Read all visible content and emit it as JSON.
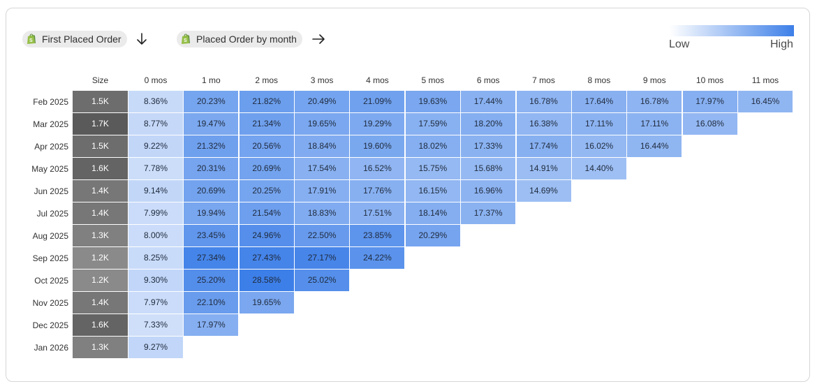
{
  "header": {
    "row_dimension_label": "First Placed Order",
    "row_dimension_icon": "shopify-logo-icon",
    "row_arrow_icon": "arrow-down-icon",
    "column_dimension_label": "Placed Order by month",
    "column_dimension_icon": "shopify-logo-icon",
    "column_arrow_icon": "arrow-right-icon"
  },
  "legend": {
    "low_label": "Low",
    "high_label": "High",
    "low_color": "#ffffff",
    "high_color": "#3d7fe8"
  },
  "colors": {
    "size_dark": "#5a5a5a",
    "size_light": "#8a8a8a"
  },
  "chart_data": {
    "type": "heatmap",
    "size_header": "Size",
    "columns": [
      "0 mos",
      "1 mo",
      "2 mos",
      "3 mos",
      "4 mos",
      "5 mos",
      "6 mos",
      "7 mos",
      "8 mos",
      "9 mos",
      "10 mos",
      "11 mos"
    ],
    "rows": [
      {
        "label": "Feb 2025",
        "size": "1.5K",
        "size_value": 1500,
        "values": [
          8.36,
          20.23,
          21.82,
          20.49,
          21.09,
          19.63,
          17.44,
          16.78,
          17.64,
          16.78,
          17.97,
          16.45
        ]
      },
      {
        "label": "Mar 2025",
        "size": "1.7K",
        "size_value": 1700,
        "values": [
          8.77,
          19.47,
          21.34,
          19.65,
          19.29,
          17.59,
          18.2,
          16.38,
          17.11,
          17.11,
          16.08
        ]
      },
      {
        "label": "Apr 2025",
        "size": "1.5K",
        "size_value": 1500,
        "values": [
          9.22,
          21.32,
          20.56,
          18.84,
          19.6,
          18.02,
          17.33,
          17.74,
          16.02,
          16.44
        ]
      },
      {
        "label": "May 2025",
        "size": "1.6K",
        "size_value": 1600,
        "values": [
          7.78,
          20.31,
          20.69,
          17.54,
          16.52,
          15.75,
          15.68,
          14.91,
          14.4
        ]
      },
      {
        "label": "Jun 2025",
        "size": "1.4K",
        "size_value": 1400,
        "values": [
          9.14,
          20.69,
          20.25,
          17.91,
          17.76,
          16.15,
          16.96,
          14.69
        ]
      },
      {
        "label": "Jul 2025",
        "size": "1.4K",
        "size_value": 1400,
        "values": [
          7.99,
          19.94,
          21.54,
          18.83,
          17.51,
          18.14,
          17.37
        ]
      },
      {
        "label": "Aug 2025",
        "size": "1.3K",
        "size_value": 1300,
        "values": [
          8.0,
          23.45,
          24.96,
          22.5,
          23.85,
          20.29
        ]
      },
      {
        "label": "Sep 2025",
        "size": "1.2K",
        "size_value": 1200,
        "values": [
          8.25,
          27.34,
          27.43,
          27.17,
          24.22
        ]
      },
      {
        "label": "Oct 2025",
        "size": "1.2K",
        "size_value": 1200,
        "values": [
          9.3,
          25.2,
          28.58,
          25.02
        ]
      },
      {
        "label": "Nov 2025",
        "size": "1.4K",
        "size_value": 1400,
        "values": [
          7.97,
          22.1,
          19.65
        ]
      },
      {
        "label": "Dec 2025",
        "size": "1.6K",
        "size_value": 1600,
        "values": [
          7.33,
          17.97
        ]
      },
      {
        "label": "Jan 2026",
        "size": "1.3K",
        "size_value": 1300,
        "values": [
          9.27
        ]
      }
    ],
    "value_format": "percent",
    "color_scale": {
      "low": "#ffffff",
      "high": "#3d7fe8"
    },
    "legend_position": "top-right"
  }
}
